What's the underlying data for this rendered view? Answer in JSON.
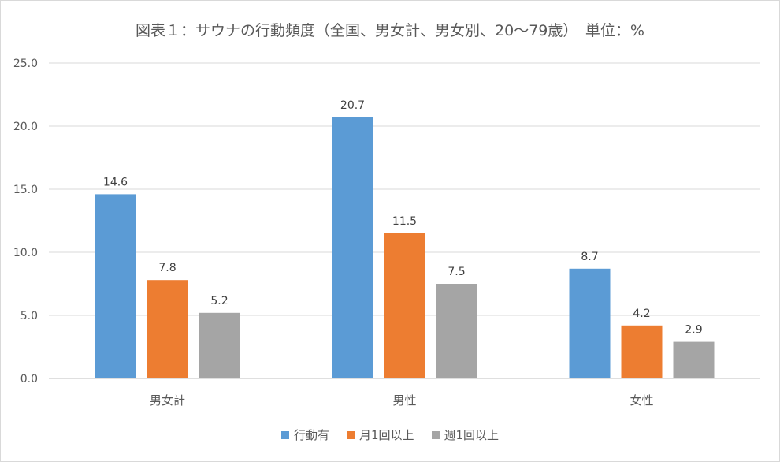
{
  "chart_data": {
    "type": "bar",
    "title": "図表１：サウナの行動頻度（全国、男女計、男女別、20～79歳）　単位：%",
    "categories": [
      "男女計",
      "男性",
      "女性"
    ],
    "series": [
      {
        "name": "行動有",
        "values": [
          14.6,
          20.7,
          8.7
        ],
        "color": "#5b9bd5"
      },
      {
        "name": "月1回以上",
        "values": [
          7.8,
          11.5,
          4.2
        ],
        "color": "#ed7d31"
      },
      {
        "name": "週1回以上",
        "values": [
          5.2,
          7.5,
          2.9
        ],
        "color": "#a5a5a5"
      }
    ],
    "yticks": [
      "0.0",
      "5.0",
      "10.0",
      "15.0",
      "20.0",
      "25.0"
    ],
    "ylim": [
      0,
      25
    ],
    "xlabel": "",
    "ylabel": "",
    "grid": true,
    "legend_position": "bottom"
  }
}
